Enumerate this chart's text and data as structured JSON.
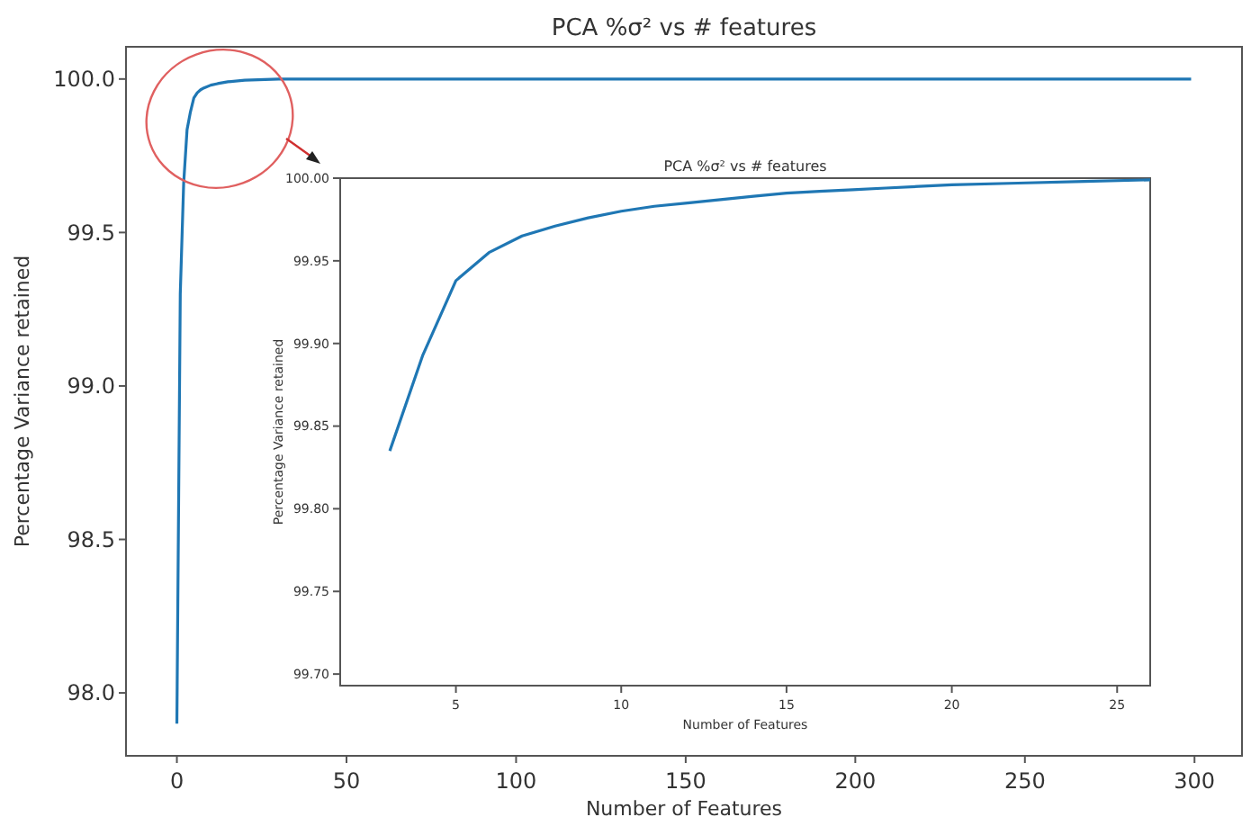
{
  "chart_data": [
    {
      "type": "line",
      "title": "PCA %σ² vs # features",
      "xlabel": "Number of Features",
      "ylabel": "Percentage Variance retained",
      "color": "#1f77b4",
      "x": [
        0,
        1,
        2,
        3,
        4,
        5,
        6,
        7,
        8,
        10,
        12,
        15,
        20,
        30,
        50,
        100,
        150,
        200,
        250,
        299
      ],
      "values": [
        97.9,
        99.3,
        99.66,
        99.835,
        99.893,
        99.938,
        99.955,
        99.965,
        99.971,
        99.98,
        99.985,
        99.991,
        99.996,
        100,
        100,
        100,
        100,
        100,
        100,
        100
      ],
      "xlim": [
        -15,
        314
      ],
      "ylim": [
        97.795,
        100.105
      ],
      "xticks": [
        0,
        50,
        100,
        150,
        200,
        250,
        300
      ],
      "yticks": [
        {
          "value": 98,
          "label": "98.0"
        },
        98.5,
        {
          "value": 99,
          "label": "99.0"
        },
        99.5,
        {
          "value": 100,
          "label": "100.0"
        }
      ]
    },
    {
      "type": "line",
      "title": "PCA %σ² vs # features",
      "xlabel": "Number of Features",
      "ylabel": "Percentage Variance retained",
      "color": "#1f77b4",
      "x": [
        3,
        4,
        5,
        6,
        7,
        8,
        9,
        10,
        11,
        12,
        13,
        14,
        15,
        16,
        17,
        18,
        19,
        20,
        22,
        24,
        26
      ],
      "values": [
        99.835,
        99.893,
        99.938,
        99.955,
        99.965,
        99.971,
        99.976,
        99.98,
        99.983,
        99.985,
        99.987,
        99.989,
        99.991,
        99.992,
        99.993,
        99.994,
        99.995,
        99.996,
        99.997,
        99.998,
        99.999
      ],
      "xlim": [
        1.5,
        26
      ],
      "ylim": [
        99.693,
        100
      ],
      "xticks": [
        5,
        10,
        15,
        20,
        25
      ],
      "yticks": [
        {
          "value": 99.7,
          "label": "99.70"
        },
        99.75,
        {
          "value": 99.8,
          "label": "99.80"
        },
        99.85,
        {
          "value": 99.9,
          "label": "99.90"
        },
        99.95,
        {
          "value": 100,
          "label": "100.00"
        }
      ]
    }
  ]
}
